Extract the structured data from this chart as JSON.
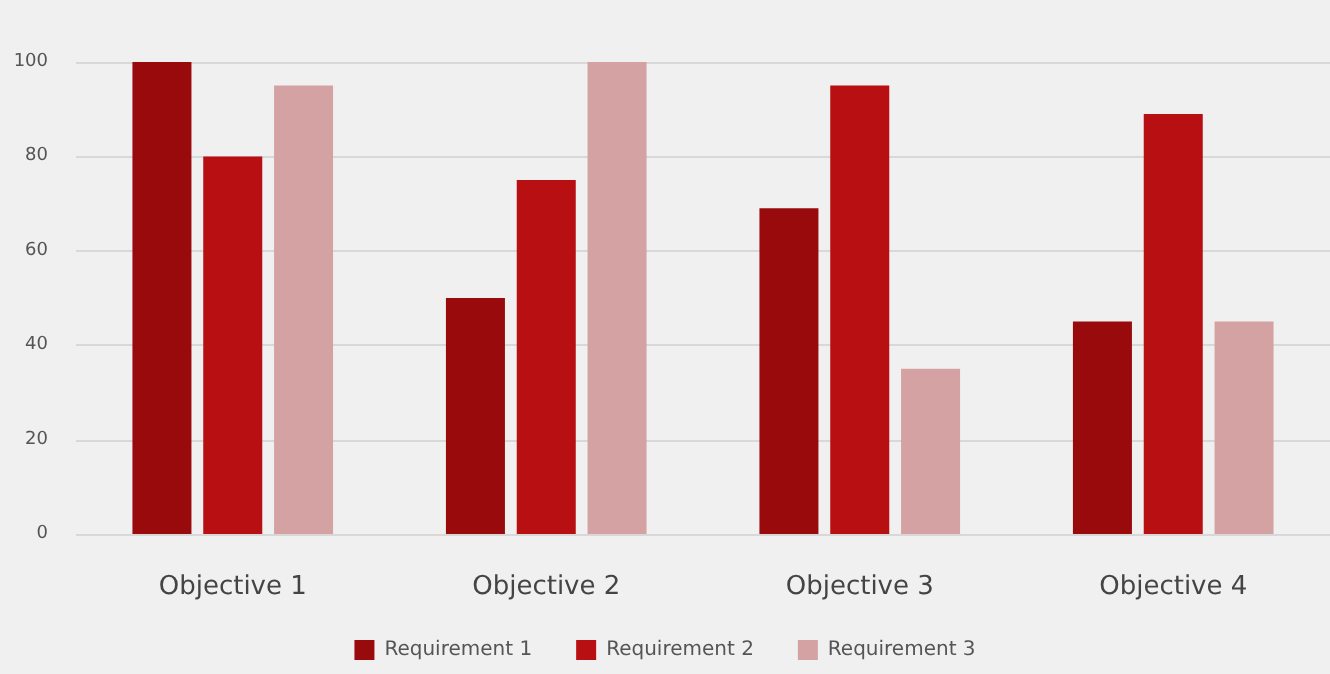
{
  "chart_data": {
    "type": "bar",
    "categories": [
      "Objective 1",
      "Objective 2",
      "Objective 3",
      "Objective 4"
    ],
    "series": [
      {
        "name": "Requirement 1",
        "color": "#990a0d",
        "values": [
          100,
          50,
          69,
          45
        ]
      },
      {
        "name": "Requirement 2",
        "color": "#b80f12",
        "values": [
          80,
          75,
          95,
          89
        ]
      },
      {
        "name": "Requirement 3",
        "color": "#d4a2a2",
        "values": [
          95,
          100,
          35,
          45
        ]
      }
    ],
    "ylim": [
      0,
      100
    ],
    "yticks": [
      0,
      20,
      40,
      60,
      80,
      100
    ],
    "grid": "y",
    "legend": "bottom"
  }
}
